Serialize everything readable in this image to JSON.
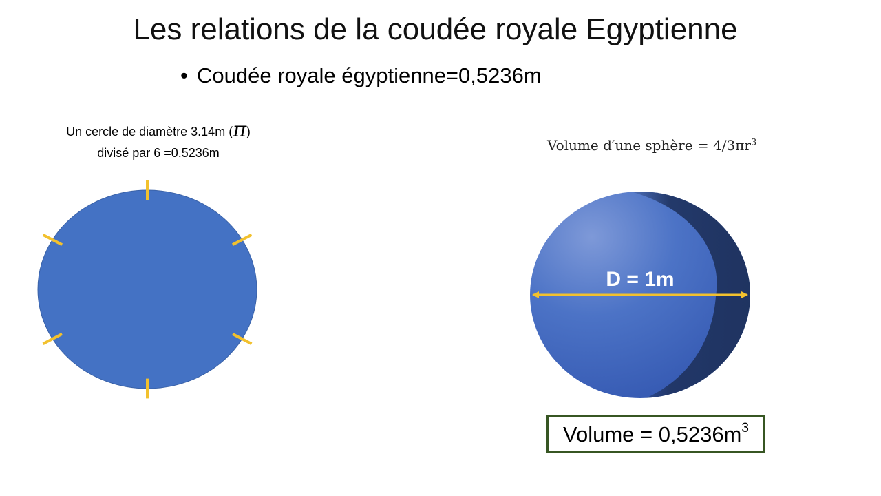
{
  "slide": {
    "title": "Les relations de la coudée royale Egyptienne",
    "bullet_text": "Coudée royale égyptienne=0,5236m"
  },
  "left": {
    "caption_line1": "Un cercle de diamètre 3.14m (",
    "caption_pi": "π",
    "caption_close": ")",
    "caption_line2": "divisé par 6 =0.5236m",
    "tick_count": 6
  },
  "right": {
    "formula_text": "Volume d′une sphère = 4/3πr",
    "formula_exponent": "3",
    "diameter_label": "D = 1m",
    "result_text": "Volume = 0,5236m",
    "result_exponent": "3"
  },
  "colors": {
    "circle_fill": "#4472C4",
    "tick_color": "#F2C12E",
    "sphere_dark": "#1F3360",
    "result_border": "#375623"
  }
}
